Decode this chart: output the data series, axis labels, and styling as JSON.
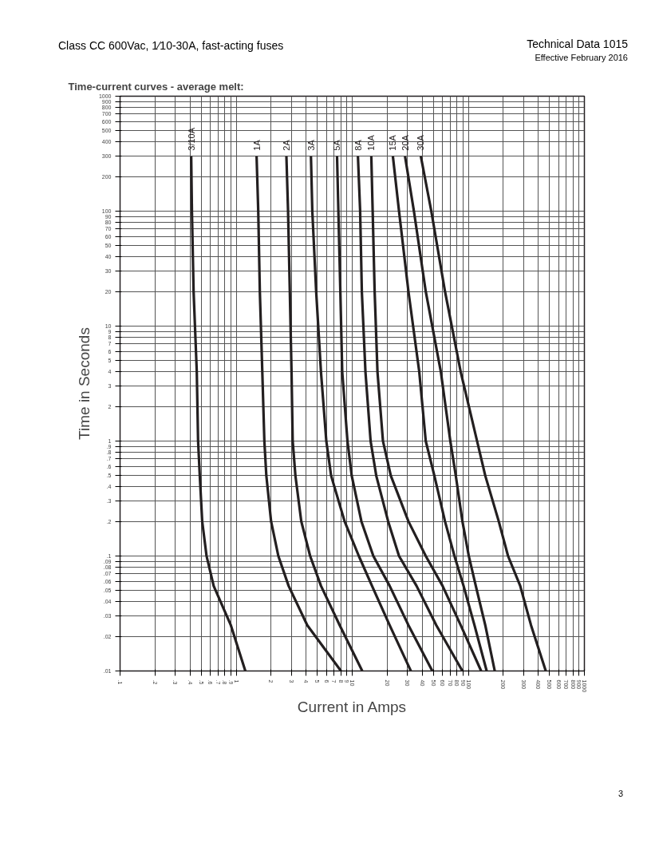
{
  "chart_data": {
    "type": "line",
    "title": "Time-current curves - average melt:",
    "subtitle": "Class CC 600Vac, 1⁄10-30A, fast-acting fuses",
    "annotations": [
      "Technical Data 1015",
      "Effective February 2016",
      "3"
    ],
    "xlabel": "Current in Amps",
    "ylabel": "Time in Seconds",
    "log": "xy",
    "grid": true,
    "marker": "none",
    "line_style": "solid",
    "xlim": [
      0.1,
      1000
    ],
    "ylim": [
      0.01,
      1000
    ],
    "xticks": [
      {
        "value": 0.1,
        "label": ".1"
      },
      {
        "value": 0.2,
        "label": ".2"
      },
      {
        "value": 0.3,
        "label": ".3"
      },
      {
        "value": 0.4,
        "label": ".4"
      },
      {
        "value": 0.5,
        "label": ".5"
      },
      {
        "value": 0.6,
        "label": ".6"
      },
      {
        "value": 0.7,
        "label": ".7"
      },
      {
        "value": 0.8,
        "label": ".8"
      },
      {
        "value": 0.9,
        "label": ".9"
      },
      1,
      2,
      3,
      4,
      5,
      6,
      7,
      8,
      9,
      10,
      20,
      30,
      40,
      50,
      60,
      70,
      80,
      90,
      100,
      200,
      300,
      400,
      500,
      600,
      700,
      800,
      900,
      1000
    ],
    "yticks": [
      {
        "value": 0.01,
        "label": ".01"
      },
      {
        "value": 0.02,
        "label": ".02"
      },
      {
        "value": 0.03,
        "label": ".03"
      },
      {
        "value": 0.04,
        "label": ".04"
      },
      {
        "value": 0.05,
        "label": ".05"
      },
      {
        "value": 0.06,
        "label": ".06"
      },
      {
        "value": 0.07,
        "label": ".07"
      },
      {
        "value": 0.08,
        "label": ".08"
      },
      {
        "value": 0.09,
        "label": ".09"
      },
      {
        "value": 0.1,
        "label": ".1"
      },
      {
        "value": 0.2,
        "label": ".2"
      },
      {
        "value": 0.3,
        "label": ".3"
      },
      {
        "value": 0.4,
        "label": ".4"
      },
      {
        "value": 0.5,
        "label": ".5"
      },
      {
        "value": 0.6,
        "label": ".6"
      },
      {
        "value": 0.7,
        "label": ".7"
      },
      {
        "value": 0.8,
        "label": ".8"
      },
      {
        "value": 0.9,
        "label": ".9"
      },
      1,
      2,
      3,
      4,
      5,
      6,
      7,
      8,
      9,
      10,
      20,
      30,
      40,
      50,
      60,
      70,
      80,
      90,
      100,
      200,
      300,
      400,
      500,
      600,
      700,
      800,
      900,
      1000
    ],
    "series": [
      {
        "name": "3/10A",
        "color": "#231f20",
        "x": [
          0.41,
          0.416,
          0.43,
          0.458,
          0.47,
          0.486,
          0.51,
          0.556,
          0.64,
          0.9,
          1.2
        ],
        "values": [
          300,
          100,
          20,
          4,
          1,
          0.5,
          0.2,
          0.1,
          0.055,
          0.025,
          0.01
        ]
      },
      {
        "name": "1A",
        "color": "#231f20",
        "x": [
          1.5,
          1.55,
          1.6,
          1.68,
          1.75,
          1.82,
          2.0,
          2.31,
          2.83,
          4.1,
          8.0
        ],
        "values": [
          300,
          100,
          20,
          4,
          1,
          0.5,
          0.2,
          0.1,
          0.055,
          0.025,
          0.01
        ]
      },
      {
        "name": "2A",
        "color": "#231f20",
        "x": [
          2.71,
          2.8,
          2.9,
          3.0,
          3.07,
          3.24,
          3.64,
          4.34,
          5.38,
          7.8,
          12.2
        ],
        "values": [
          300,
          100,
          20,
          4,
          1,
          0.5,
          0.2,
          0.1,
          0.055,
          0.025,
          0.01
        ]
      },
      {
        "name": "3A",
        "color": "#231f20",
        "x": [
          4.41,
          4.53,
          4.89,
          5.38,
          5.98,
          6.58,
          8.6,
          11.4,
          14.8,
          21,
          32
        ],
        "values": [
          300,
          100,
          20,
          4,
          1,
          0.5,
          0.2,
          0.1,
          0.055,
          0.025,
          0.01
        ]
      },
      {
        "name": "5A",
        "color": "#231f20",
        "x": [
          7.4,
          7.6,
          7.9,
          8.2,
          9.1,
          9.9,
          12,
          15.2,
          21,
          30.5,
          49
        ],
        "values": [
          300,
          100,
          20,
          4,
          1,
          0.5,
          0.2,
          0.1,
          0.055,
          0.025,
          0.01
        ]
      },
      {
        "name": "8A",
        "color": "#231f20",
        "x": [
          11.2,
          11.7,
          12.1,
          13,
          14.4,
          16.1,
          20.4,
          25.3,
          35.8,
          53,
          89
        ],
        "values": [
          300,
          100,
          20,
          4,
          1,
          0.5,
          0.2,
          0.1,
          0.055,
          0.025,
          0.01
        ]
      },
      {
        "name": "10A",
        "color": "#231f20",
        "x": [
          14.6,
          15,
          15.6,
          16.5,
          18.4,
          21.5,
          30.5,
          43,
          60,
          86,
          129
        ],
        "values": [
          300,
          100,
          20,
          4,
          1,
          0.5,
          0.2,
          0.1,
          0.055,
          0.025,
          0.01
        ]
      },
      {
        "name": "15A",
        "color": "#231f20",
        "x": [
          22.4,
          25.3,
          30.5,
          37.8,
          43,
          51,
          63,
          76,
          91,
          113,
          144
        ],
        "values": [
          300,
          100,
          20,
          4,
          1,
          0.5,
          0.2,
          0.1,
          0.055,
          0.025,
          0.01
        ]
      },
      {
        "name": "20A",
        "color": "#231f20",
        "x": [
          28.5,
          34,
          43,
          58,
          70,
          78,
          89,
          101,
          116,
          140,
          169
        ],
        "values": [
          300,
          100,
          20,
          4,
          1,
          0.5,
          0.2,
          0.1,
          0.055,
          0.025,
          0.01
        ]
      },
      {
        "name": "30A",
        "color": "#231f20",
        "x": [
          39,
          48,
          63,
          86,
          119,
          140,
          183,
          220,
          280,
          347,
          465
        ],
        "values": [
          300,
          100,
          20,
          4,
          1,
          0.5,
          0.2,
          0.1,
          0.055,
          0.025,
          0.01
        ]
      }
    ]
  }
}
